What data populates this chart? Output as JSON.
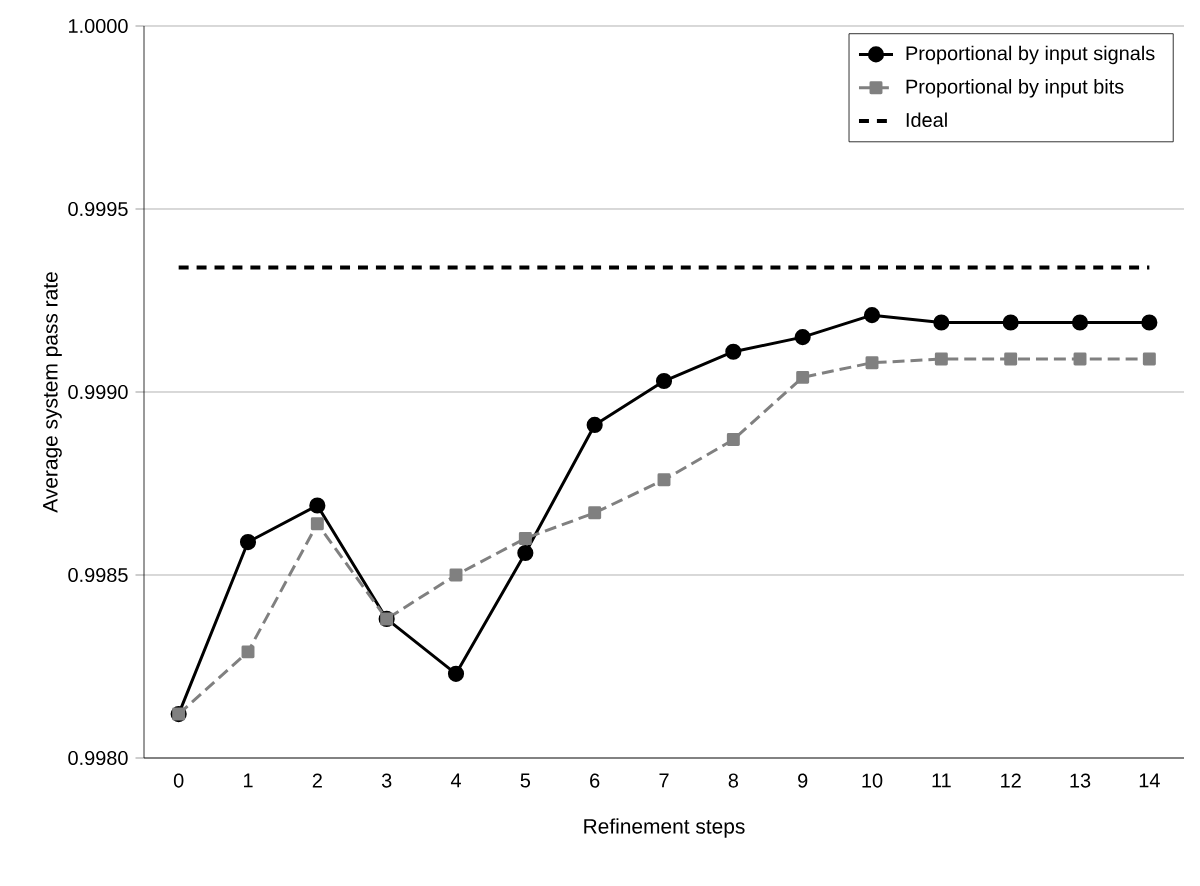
{
  "chart_data": {
    "type": "line",
    "xlabel": "Refinement steps",
    "ylabel": "Average system pass rate",
    "categories": [
      "0",
      "1",
      "2",
      "3",
      "4",
      "5",
      "6",
      "7",
      "8",
      "9",
      "10",
      "11",
      "12",
      "13",
      "14"
    ],
    "series": [
      {
        "name": "Proportional by input signals",
        "color": "#000000",
        "marker": "circle",
        "line_style": "solid",
        "values": [
          0.99812,
          0.99859,
          0.99869,
          0.99838,
          0.99823,
          0.99856,
          0.99891,
          0.99903,
          0.99911,
          0.99915,
          0.99921,
          0.99919,
          0.99919,
          0.99919,
          0.99919
        ]
      },
      {
        "name": "Proportional by input bits",
        "color": "#808080",
        "marker": "square",
        "line_style": "dashed",
        "values": [
          0.99812,
          0.99829,
          0.99864,
          0.99838,
          0.9985,
          0.9986,
          0.99867,
          0.99876,
          0.99887,
          0.99904,
          0.99908,
          0.99909,
          0.99909,
          0.99909,
          0.99909
        ]
      },
      {
        "name": "Ideal",
        "color": "#000000",
        "marker": "none",
        "line_style": "dashed",
        "values": [
          0.99934,
          0.99934,
          0.99934,
          0.99934,
          0.99934,
          0.99934,
          0.99934,
          0.99934,
          0.99934,
          0.99934,
          0.99934,
          0.99934,
          0.99934,
          0.99934,
          0.99934
        ]
      }
    ],
    "ylim": [
      0.998,
      1.0
    ],
    "yticks": [
      {
        "value": 0.998,
        "label": "0.9980"
      },
      {
        "value": 0.9985,
        "label": "0.9985"
      },
      {
        "value": 0.999,
        "label": "0.9990"
      },
      {
        "value": 0.9995,
        "label": "0.9995"
      },
      {
        "value": 1.0,
        "label": "1.0000"
      }
    ],
    "grid": "y",
    "legend": "top right"
  }
}
